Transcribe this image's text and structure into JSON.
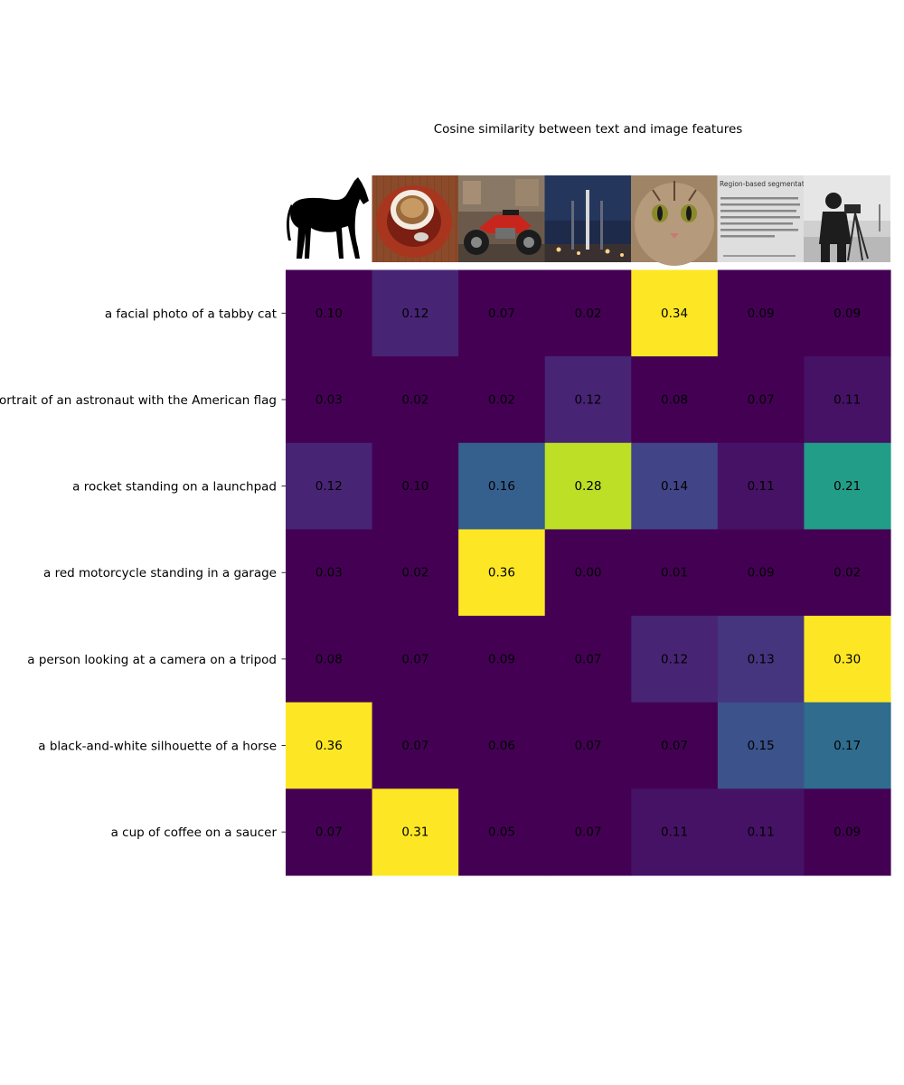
{
  "chart_data": {
    "type": "heatmap",
    "title": "Cosine similarity between text and image features",
    "rows": [
      "a facial photo of a tabby cat",
      "a portrait of an astronaut with the American flag",
      "a rocket standing on a launchpad",
      "a red motorcycle standing in a garage",
      "a person looking at a camera on a tripod",
      "a black-and-white silhouette of a horse",
      "a cup of coffee on a saucer"
    ],
    "columns": [
      "horse",
      "coffee",
      "motorcycle",
      "rocket",
      "cat",
      "page",
      "camera"
    ],
    "values": [
      [
        0.1,
        0.12,
        0.07,
        0.02,
        0.34,
        0.09,
        0.09
      ],
      [
        0.03,
        0.02,
        0.02,
        0.12,
        0.08,
        0.07,
        0.11
      ],
      [
        0.12,
        0.1,
        0.16,
        0.28,
        0.14,
        0.11,
        0.21
      ],
      [
        0.03,
        0.02,
        0.36,
        0.0,
        0.01,
        0.09,
        0.02
      ],
      [
        0.08,
        0.07,
        0.09,
        0.07,
        0.12,
        0.13,
        0.3
      ],
      [
        0.36,
        0.07,
        0.06,
        0.07,
        0.07,
        0.15,
        0.17
      ],
      [
        0.07,
        0.31,
        0.05,
        0.07,
        0.11,
        0.11,
        0.09
      ]
    ],
    "value_format_decimals": 2,
    "color_range": [
      0.1,
      0.3
    ],
    "colormap": "viridis",
    "thumbnails_text": {
      "page_heading": "Region-based segmentation"
    }
  }
}
